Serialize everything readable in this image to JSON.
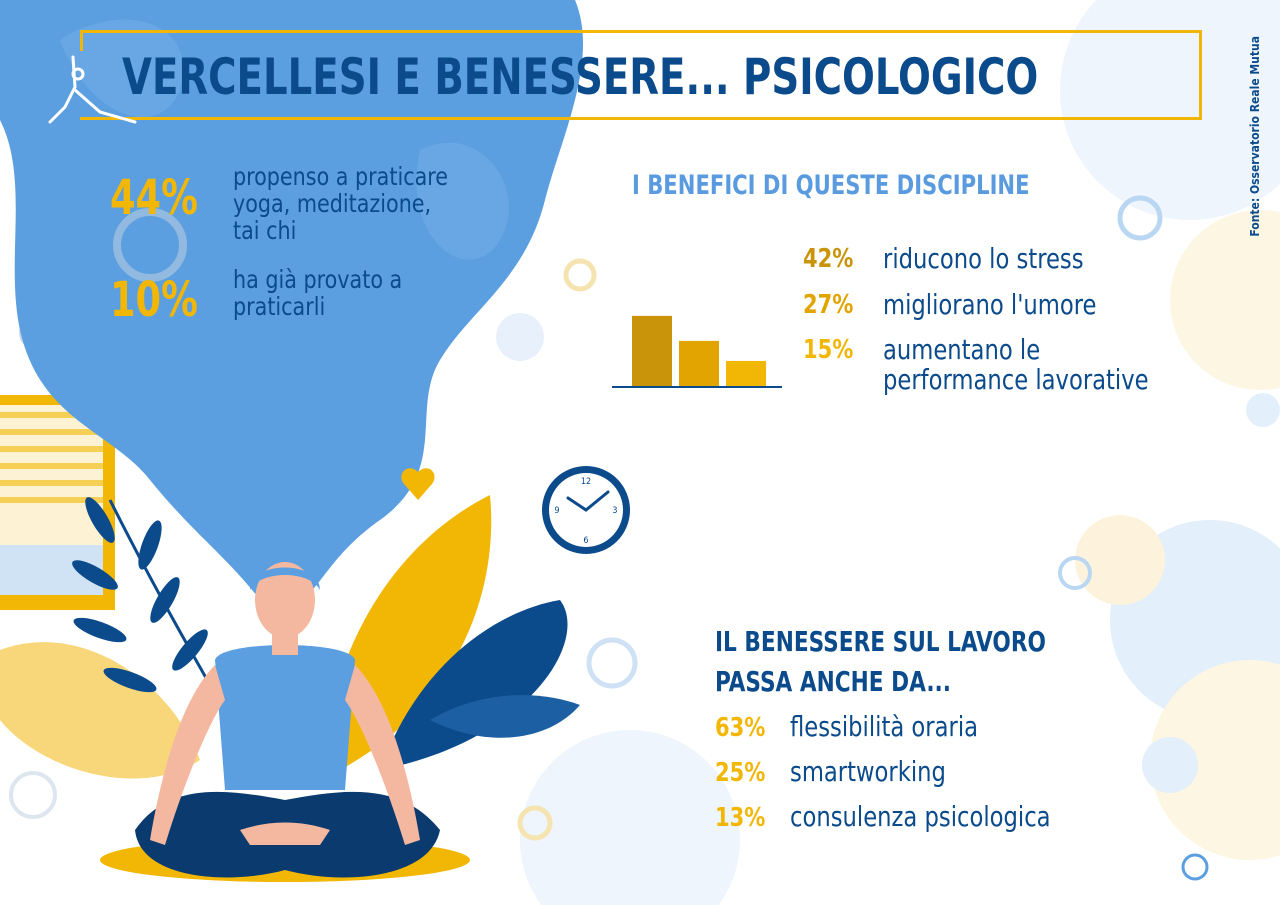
{
  "header": {
    "title": "VERCELLESI E BENESSERE... PSICOLOGICO",
    "source": "Fonte: Osservatorio Reale Mutua"
  },
  "intro_stats": [
    {
      "value": "44%",
      "text_lines": [
        "propenso a praticare",
        "yoga, meditazione,",
        "tai chi"
      ]
    },
    {
      "value": "10%",
      "text_lines": [
        "ha già  provato a",
        "praticarli"
      ]
    }
  ],
  "benefits": {
    "heading": "I BENEFICI DI QUESTE DISCIPLINE",
    "items": [
      {
        "value": "42%",
        "percent": 42,
        "text_lines": [
          "riducono lo stress"
        ],
        "color": "#c9930a"
      },
      {
        "value": "27%",
        "percent": 27,
        "text_lines": [
          "migliorano l'umore"
        ],
        "color": "#e2a400"
      },
      {
        "value": "15%",
        "percent": 15,
        "text_lines": [
          "aumentano le",
          "performance lavorative"
        ],
        "color": "#f2b705"
      }
    ]
  },
  "work": {
    "heading_lines": [
      "IL BENESSERE SUL LAVORO",
      "PASSA ANCHE DA..."
    ],
    "items": [
      {
        "value": "63%",
        "text": "flessibilità oraria"
      },
      {
        "value": "25%",
        "text": "smartworking"
      },
      {
        "value": "13%",
        "text": "consulenza psicologica"
      }
    ]
  },
  "clock": {
    "labels": [
      "12",
      "3",
      "6",
      "9"
    ]
  },
  "colors": {
    "dark_blue": "#0b4a8b",
    "yellow": "#f2b705",
    "sky_blue": "#5b9fe0",
    "light_blue": "#5a9be0"
  }
}
